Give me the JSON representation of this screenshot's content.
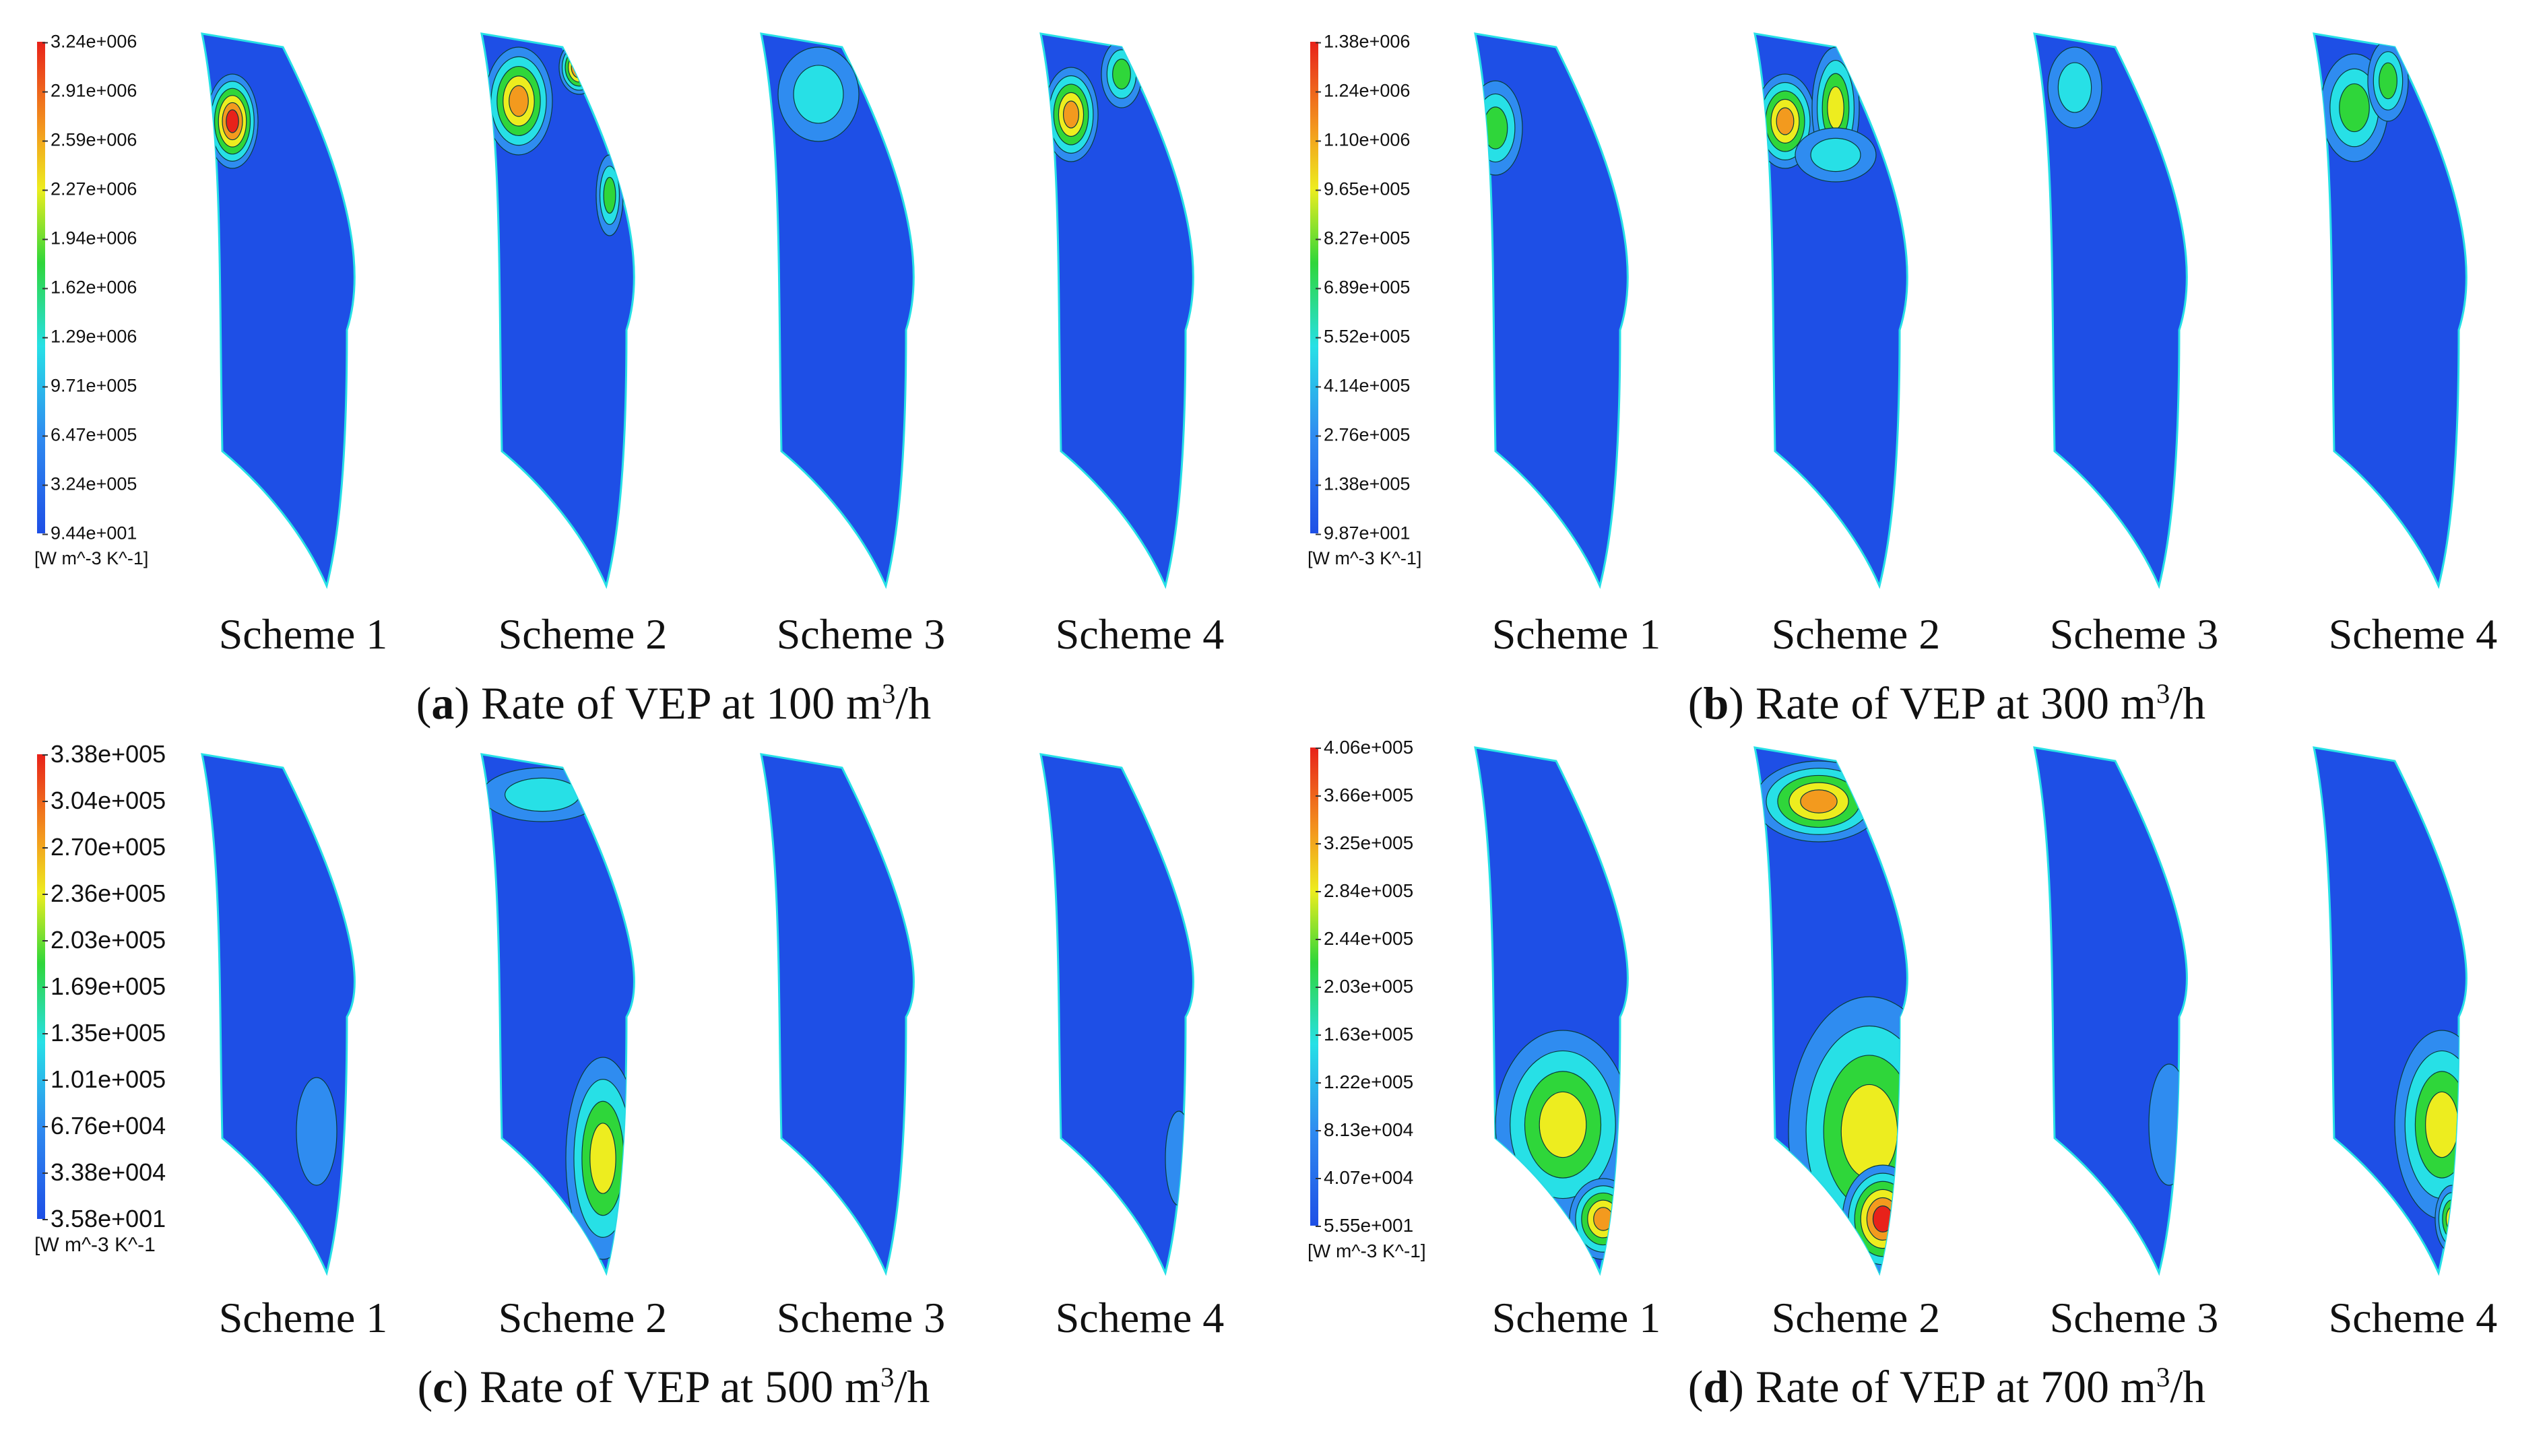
{
  "panels": [
    {
      "letter": "a",
      "caption_text": "Rate of VEP at 100 m",
      "caption_sup": "3",
      "caption_end": "/h",
      "legend": {
        "values": [
          "3.24e+006",
          "2.91e+006",
          "2.59e+006",
          "2.27e+006",
          "1.94e+006",
          "1.62e+006",
          "1.29e+006",
          "9.71e+005",
          "6.47e+005",
          "3.24e+005",
          "9.44e+001"
        ],
        "unit": "[W m^-3 K^-1]"
      },
      "schemes": [
        "Scheme 1",
        "Scheme 2",
        "Scheme 3",
        "Scheme 4"
      ]
    },
    {
      "letter": "b",
      "caption_text": "Rate of VEP at 300 m",
      "caption_sup": "3",
      "caption_end": "/h",
      "legend": {
        "values": [
          "1.38e+006",
          "1.24e+006",
          "1.10e+006",
          "9.65e+005",
          "8.27e+005",
          "6.89e+005",
          "5.52e+005",
          "4.14e+005",
          "2.76e+005",
          "1.38e+005",
          "9.87e+001"
        ],
        "unit": "[W m^-3 K^-1]"
      },
      "schemes": [
        "Scheme 1",
        "Scheme 2",
        "Scheme 3",
        "Scheme 4"
      ]
    },
    {
      "letter": "c",
      "caption_text": "Rate of VEP at 500 m",
      "caption_sup": "3",
      "caption_end": "/h",
      "legend": {
        "values": [
          "3.38e+005",
          "3.04e+005",
          "2.70e+005",
          "2.36e+005",
          "2.03e+005",
          "1.69e+005",
          "1.35e+005",
          "1.01e+005",
          "6.76e+004",
          "3.38e+004",
          "3.58e+001"
        ],
        "unit": "[W m^-3 K^-1"
      },
      "schemes": [
        "Scheme 1",
        "Scheme 2",
        "Scheme 3",
        "Scheme 4"
      ]
    },
    {
      "letter": "d",
      "caption_text": "Rate of VEP at 700 m",
      "caption_sup": "3",
      "caption_end": "/h",
      "legend": {
        "values": [
          "4.06e+005",
          "3.66e+005",
          "3.25e+005",
          "2.84e+005",
          "2.44e+005",
          "2.03e+005",
          "1.63e+005",
          "1.22e+005",
          "8.13e+004",
          "4.07e+004",
          "5.55e+001"
        ],
        "unit": "[W m^-3 K^-1]"
      },
      "schemes": [
        "Scheme 1",
        "Scheme 2",
        "Scheme 3",
        "Scheme 4"
      ]
    }
  ],
  "colors": {
    "base_blue": "#1e4fe6",
    "light_blue": "#2f8cf0",
    "cyan": "#27e0e6",
    "green": "#2fd63a",
    "yellow": "#eded1f",
    "orange": "#f39a1e",
    "red": "#e8221a"
  }
}
